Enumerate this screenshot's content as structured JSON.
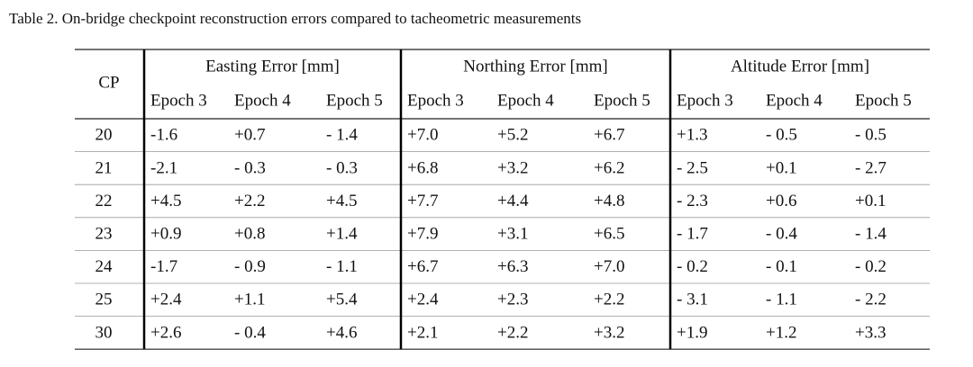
{
  "caption": "Table 2. On-bridge checkpoint reconstruction errors compared to tacheometric measurements",
  "table": {
    "corner": "CP",
    "groups": [
      "Easting Error [mm]",
      "Northing Error [mm]",
      "Altitude Error [mm]"
    ],
    "subheaders": [
      "Epoch 3",
      "Epoch 4",
      "Epoch 5",
      "Epoch 3",
      "Epoch 4",
      "Epoch 5",
      "Epoch 3",
      "Epoch 4",
      "Epoch 5"
    ],
    "rows": [
      [
        "20",
        "-1.6",
        "+0.7",
        "- 1.4",
        "+7.0",
        "+5.2",
        "+6.7",
        "+1.3",
        "- 0.5",
        "- 0.5"
      ],
      [
        "21",
        "-2.1",
        "- 0.3",
        "- 0.3",
        "+6.8",
        "+3.2",
        "+6.2",
        "- 2.5",
        "+0.1",
        "- 2.7"
      ],
      [
        "22",
        "+4.5",
        "+2.2",
        "+4.5",
        "+7.7",
        "+4.4",
        "+4.8",
        "- 2.3",
        "+0.6",
        "+0.1"
      ],
      [
        "23",
        "+0.9",
        "+0.8",
        "+1.4",
        "+7.9",
        "+3.1",
        "+6.5",
        "- 1.7",
        "- 0.4",
        "- 1.4"
      ],
      [
        "24",
        "-1.7",
        "- 0.9",
        "- 1.1",
        "+6.7",
        "+6.3",
        "+7.0",
        "- 0.2",
        "- 0.1",
        "- 0.2"
      ],
      [
        "25",
        "+2.4",
        "+1.1",
        "+5.4",
        "+2.4",
        "+2.3",
        "+2.2",
        "- 3.1",
        "- 1.1",
        "- 2.2"
      ],
      [
        "30",
        "+2.6",
        "- 0.4",
        "+4.6",
        "+2.1",
        "+2.2",
        "+3.2",
        "+1.9",
        "+1.2",
        "+3.3"
      ]
    ]
  }
}
